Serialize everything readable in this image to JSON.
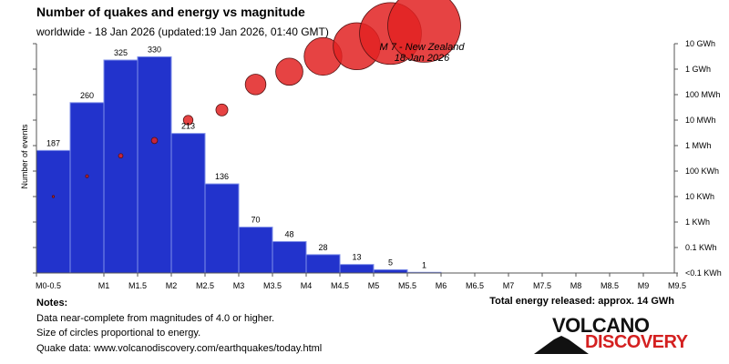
{
  "header": {
    "title": "Number of quakes and energy vs magnitude",
    "subtitle": "worldwide - 18 Jan 2026 (updated:19 Jan 2026, 01:40 GMT)"
  },
  "notes": {
    "heading": "Notes:",
    "line1": "Data near-complete from magnitudes of 4.0 or higher.",
    "line2": "Size of circles proportional to energy.",
    "line3": "Quake data: www.volcanodiscovery.com/earthquakes/today.html"
  },
  "total_energy": "Total energy released: approx. 14 GWh",
  "logo": {
    "line1": "VOLCANO",
    "line2": "DISCOVERY"
  },
  "colors": {
    "bar": "#2233cc",
    "bar_edge": "#7f8fe8",
    "circle": "#e22222",
    "circle_edge": "#551111"
  },
  "chart_data": {
    "type": "bar",
    "ylabel": "Number of events",
    "x_tick_labels": [
      "M0-0.5",
      "M1",
      "M1.5",
      "M2",
      "M2.5",
      "M3",
      "M3.5",
      "M4",
      "M4.5",
      "M5",
      "M5.5",
      "M6",
      "M6.5",
      "M7",
      "M7.5",
      "M8",
      "M8.5",
      "M9",
      "M9.5"
    ],
    "bins": [
      {
        "from": 0,
        "to": 0.5,
        "count": 187
      },
      {
        "from": 1,
        "to": 1.5,
        "count": 260
      },
      {
        "from": 1.5,
        "to": 2,
        "count": 325
      },
      {
        "from": 2,
        "to": 2.5,
        "count": 330
      },
      {
        "from": 2.5,
        "to": 3,
        "count": 213
      },
      {
        "from": 3,
        "to": 3.5,
        "count": 136
      },
      {
        "from": 3.5,
        "to": 4,
        "count": 70
      },
      {
        "from": 4,
        "to": 4.5,
        "count": 48
      },
      {
        "from": 4.5,
        "to": 5,
        "count": 28
      },
      {
        "from": 5,
        "to": 5.5,
        "count": 13
      },
      {
        "from": 5.5,
        "to": 6,
        "count": 5
      },
      {
        "from": 6,
        "to": 6.5,
        "count": 1
      }
    ],
    "energy_axis_labels": [
      "10 GWh",
      "1 GWh",
      "100 MWh",
      "10 MWh",
      "1 MWh",
      "100 KWh",
      "10 KWh",
      "1 KWh",
      "0.1 KWh",
      "<0.1 KWh"
    ],
    "energy_points": [
      {
        "magnitude": 0.25,
        "energy_log10_kwh": 1.0
      },
      {
        "magnitude": 1.25,
        "energy_log10_kwh": 1.8
      },
      {
        "magnitude": 1.75,
        "energy_log10_kwh": 2.6
      },
      {
        "magnitude": 2.25,
        "energy_log10_kwh": 3.2
      },
      {
        "magnitude": 2.75,
        "energy_log10_kwh": 4.0
      },
      {
        "magnitude": 3.25,
        "energy_log10_kwh": 4.4
      },
      {
        "magnitude": 3.75,
        "energy_log10_kwh": 5.4
      },
      {
        "magnitude": 4.25,
        "energy_log10_kwh": 5.9
      },
      {
        "magnitude": 4.75,
        "energy_log10_kwh": 6.5
      },
      {
        "magnitude": 5.25,
        "energy_log10_kwh": 6.9
      },
      {
        "magnitude": 5.75,
        "energy_log10_kwh": 7.4
      },
      {
        "magnitude": 6.25,
        "energy_log10_kwh": 7.7
      }
    ],
    "annotation": {
      "line1": "M 7 - New Zealand",
      "line2": "18 Jan 2026"
    },
    "grid": false
  }
}
